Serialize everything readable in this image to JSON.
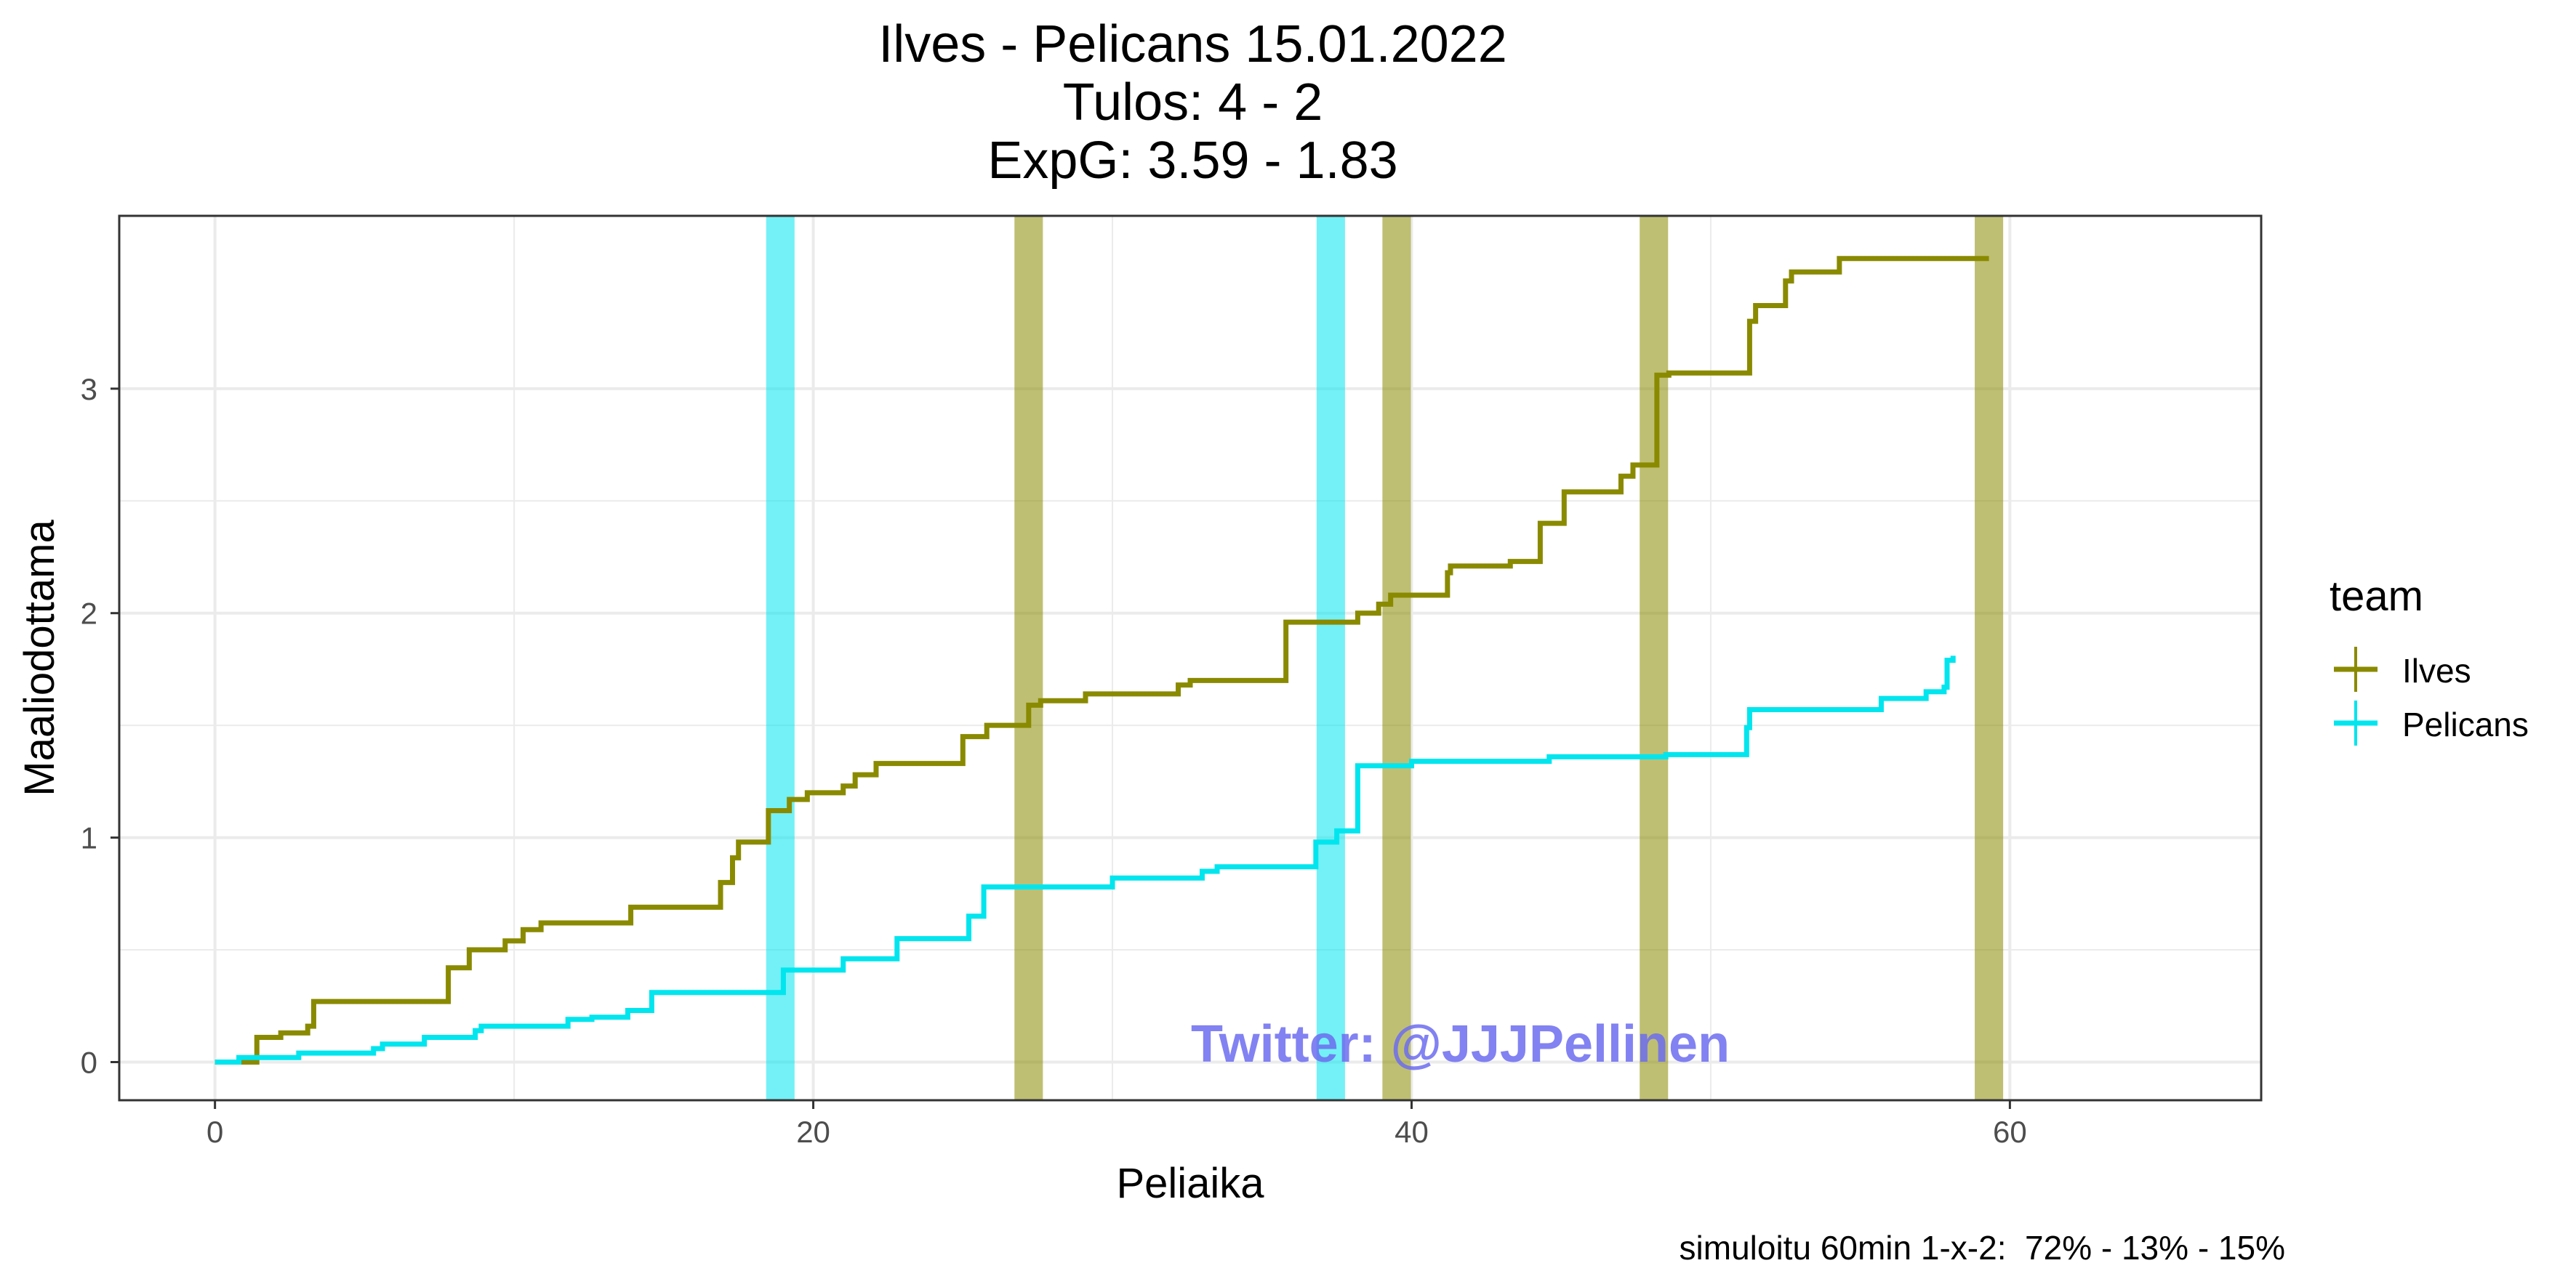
{
  "title_lines": [
    "Ilves - Pelicans 15.01.2022",
    "Tulos: 4 - 2",
    "ExpG: 3.59 - 1.83"
  ],
  "caption": "simuloitu 60min 1-x-2:  72% - 13% - 15%",
  "watermark": "Twitter: @JJJPellinen",
  "legend": {
    "title": "team"
  },
  "colors": {
    "Ilves": "#8a8a00",
    "Pelicans": "#00e5ee",
    "grid": "#ebebeb",
    "watermark": "#6d6df0"
  },
  "chart_data": {
    "type": "line",
    "line_style": "step",
    "title": "Ilves - Pelicans 15.01.2022\nTulos: 4 - 2\nExpG: 3.59 - 1.83",
    "xlabel": "Peliaika",
    "ylabel": "Maaliodottama",
    "xlim": [
      -3.2,
      68.4
    ],
    "ylim": [
      -0.17,
      3.77
    ],
    "x_ticks": [
      0,
      20,
      40,
      60
    ],
    "y_ticks": [
      0,
      1,
      2,
      3
    ],
    "grid": true,
    "legend_position": "right",
    "legend_title": "team",
    "series": [
      {
        "name": "Ilves",
        "color": "#8a8a00",
        "points": [
          [
            0.0,
            0.0
          ],
          [
            1.4,
            0.11
          ],
          [
            2.2,
            0.13
          ],
          [
            3.1,
            0.16
          ],
          [
            3.3,
            0.27
          ],
          [
            7.8,
            0.42
          ],
          [
            8.5,
            0.5
          ],
          [
            9.7,
            0.54
          ],
          [
            10.3,
            0.59
          ],
          [
            10.9,
            0.62
          ],
          [
            13.9,
            0.69
          ],
          [
            16.9,
            0.8
          ],
          [
            17.3,
            0.91
          ],
          [
            17.5,
            0.98
          ],
          [
            18.5,
            1.12
          ],
          [
            19.2,
            1.17
          ],
          [
            19.8,
            1.2
          ],
          [
            21.0,
            1.23
          ],
          [
            21.4,
            1.28
          ],
          [
            22.1,
            1.33
          ],
          [
            25.0,
            1.45
          ],
          [
            25.8,
            1.5
          ],
          [
            27.2,
            1.59
          ],
          [
            27.6,
            1.61
          ],
          [
            29.1,
            1.64
          ],
          [
            32.2,
            1.68
          ],
          [
            32.6,
            1.7
          ],
          [
            35.8,
            1.96
          ],
          [
            38.2,
            2.0
          ],
          [
            38.9,
            2.04
          ],
          [
            39.3,
            2.08
          ],
          [
            41.2,
            2.18
          ],
          [
            41.3,
            2.21
          ],
          [
            43.3,
            2.23
          ],
          [
            44.3,
            2.4
          ],
          [
            45.1,
            2.54
          ],
          [
            47.0,
            2.61
          ],
          [
            47.4,
            2.66
          ],
          [
            48.2,
            3.06
          ],
          [
            48.6,
            3.07
          ],
          [
            51.3,
            3.3
          ],
          [
            51.5,
            3.37
          ],
          [
            52.5,
            3.48
          ],
          [
            52.7,
            3.52
          ],
          [
            54.3,
            3.58
          ],
          [
            59.3,
            3.58
          ]
        ]
      },
      {
        "name": "Pelicans",
        "color": "#00e5ee",
        "points": [
          [
            0.0,
            0.0
          ],
          [
            0.8,
            0.02
          ],
          [
            1.3,
            0.02
          ],
          [
            2.8,
            0.04
          ],
          [
            5.3,
            0.06
          ],
          [
            5.6,
            0.08
          ],
          [
            7.0,
            0.11
          ],
          [
            8.7,
            0.14
          ],
          [
            8.9,
            0.16
          ],
          [
            11.8,
            0.19
          ],
          [
            12.6,
            0.2
          ],
          [
            13.8,
            0.23
          ],
          [
            14.6,
            0.31
          ],
          [
            19.0,
            0.41
          ],
          [
            21.0,
            0.46
          ],
          [
            22.8,
            0.55
          ],
          [
            25.2,
            0.65
          ],
          [
            25.7,
            0.78
          ],
          [
            30.0,
            0.82
          ],
          [
            33.0,
            0.85
          ],
          [
            33.5,
            0.87
          ],
          [
            36.8,
            0.98
          ],
          [
            37.5,
            1.03
          ],
          [
            38.2,
            1.32
          ],
          [
            40.0,
            1.34
          ],
          [
            44.6,
            1.36
          ],
          [
            48.5,
            1.37
          ],
          [
            51.2,
            1.49
          ],
          [
            51.3,
            1.57
          ],
          [
            55.7,
            1.62
          ],
          [
            57.2,
            1.65
          ],
          [
            57.8,
            1.67
          ],
          [
            57.9,
            1.79
          ],
          [
            58.1,
            1.81
          ]
        ]
      }
    ],
    "goal_bands": [
      {
        "team": "Pelicans",
        "x": 18.9
      },
      {
        "team": "Ilves",
        "x": 27.2
      },
      {
        "team": "Pelicans",
        "x": 37.3
      },
      {
        "team": "Ilves",
        "x": 39.5
      },
      {
        "team": "Ilves",
        "x": 48.1
      },
      {
        "team": "Ilves",
        "x": 59.3
      }
    ]
  }
}
